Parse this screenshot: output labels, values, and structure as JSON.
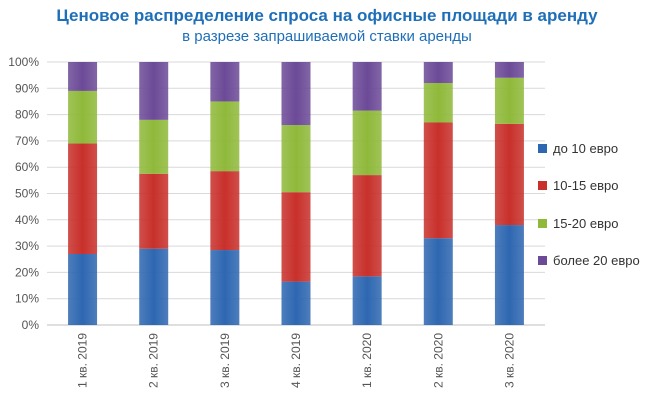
{
  "chart_data": {
    "type": "bar",
    "stacked": true,
    "title": "Ценовое распределение спроса на офисные площади в аренду",
    "subtitle": "в разрезе запрашиваемой ставки аренды",
    "categories": [
      "1 кв. 2019",
      "2 кв. 2019",
      "3 кв. 2019",
      "4 кв. 2019",
      "1 кв. 2020",
      "2 кв. 2020",
      "3 кв. 2020"
    ],
    "series": [
      {
        "name": "до 10 евро",
        "color": "#2e67b1",
        "values": [
          27,
          29,
          28.5,
          16.5,
          18.5,
          33,
          38
        ]
      },
      {
        "name": "10-15 евро",
        "color": "#c8302b",
        "values": [
          42,
          28.5,
          30,
          34,
          38.5,
          44,
          38.5
        ]
      },
      {
        "name": "15-20 евро",
        "color": "#8fb93a",
        "values": [
          20,
          20.5,
          26.5,
          25.5,
          24.5,
          15,
          17.5
        ]
      },
      {
        "name": "более 20 евро",
        "color": "#6c4a97",
        "values": [
          11,
          22,
          15,
          24,
          18.5,
          8,
          6
        ]
      }
    ],
    "ylim": [
      0,
      100
    ],
    "yticks": [
      "0%",
      "10%",
      "20%",
      "30%",
      "40%",
      "50%",
      "60%",
      "70%",
      "80%",
      "90%",
      "100%"
    ],
    "legend_position": "right",
    "grid": true
  }
}
